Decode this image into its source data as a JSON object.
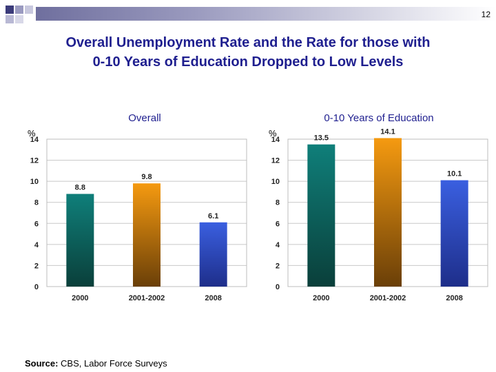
{
  "page_number": "12",
  "title_line1": "Overall Unemployment Rate and the Rate for those with",
  "title_line2": "0-10 Years of Education Dropped to Low Levels",
  "source_label": "Source:",
  "source_text": "CBS, Labor Force Surveys",
  "colors": {
    "title": "#1f1f8f",
    "bar_2000": "#0f7f7a",
    "bar_2001_2002": "#f59a10",
    "bar_2008": "#3a5fe0"
  },
  "chart_data": [
    {
      "type": "bar",
      "title": "Overall",
      "ylabel": "%",
      "categories": [
        "2000",
        "2001-2002",
        "2008"
      ],
      "values": [
        8.8,
        9.8,
        6.1
      ],
      "value_labels": [
        "8.8",
        "9.8",
        "6.1"
      ],
      "yticks": [
        "0",
        "2",
        "4",
        "6",
        "8",
        "10",
        "12",
        "14"
      ],
      "ylim": [
        0,
        14
      ],
      "grid": true
    },
    {
      "type": "bar",
      "title": "0-10 Years of Education",
      "ylabel": "%",
      "categories": [
        "2000",
        "2001-2002",
        "2008"
      ],
      "values": [
        13.5,
        14.1,
        10.1
      ],
      "value_labels": [
        "13.5",
        "14.1",
        "10.1"
      ],
      "yticks": [
        "0",
        "2",
        "4",
        "6",
        "8",
        "10",
        "12",
        "14"
      ],
      "ylim": [
        0,
        14
      ],
      "grid": true
    }
  ]
}
